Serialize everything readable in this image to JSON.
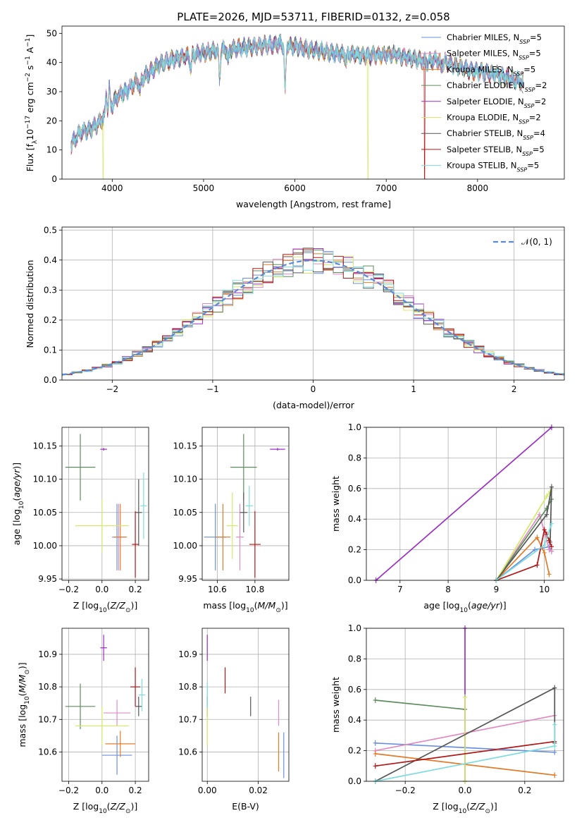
{
  "title": "PLATE=2026, MJD=53711, FIBERID=0132, z=0.058",
  "colors": {
    "chabrier_miles": "#6a8fdc",
    "salpeter_miles": "#e08cc0",
    "kroupa_miles": "#e07b2a",
    "chabrier_elodie": "#5e8c5e",
    "salpeter_elodie": "#9b30c0",
    "kroupa_elodie": "#d4ea6a",
    "chabrier_stelib": "#555555",
    "salpeter_stelib": "#b01818",
    "kroupa_stelib": "#80dcdc",
    "normal": "#5b8ad6"
  },
  "legend": {
    "chabrier_miles": "Chabrier MILES, N",
    "salpeter_miles": "Salpeter MILES, N",
    "kroupa_miles": "Kroupa MILES, N",
    "chabrier_elodie": "Chabrier ELODIE, N",
    "salpeter_elodie": "Salpeter ELODIE, N",
    "kroupa_elodie": "Kroupa ELODIE, N",
    "chabrier_stelib": "Chabrier STELIB, N",
    "salpeter_stelib": "Salpeter STELIB, N",
    "kroupa_stelib": "Kroupa STELIB, N",
    "sub": "SSP",
    "n_chabrier_miles": "=5",
    "n_salpeter_miles": "=5",
    "n_kroupa_miles": "=5",
    "n_chabrier_elodie": "=2",
    "n_salpeter_elodie": "=2",
    "n_kroupa_elodie": "=2",
    "n_chabrier_stelib": "=4",
    "n_salpeter_stelib": "=5",
    "n_kroupa_stelib": "=5",
    "normal": "𝒩(0, 1)"
  },
  "chart_data": [
    {
      "type": "line",
      "panel": "spectrum",
      "xlabel": "wavelength [Angstrom, rest frame]",
      "ylabel": "Flux [f",
      "ylabel_sub": "λ",
      "ylabel_tail": "10",
      "ylabel_exp": "−17",
      "ylabel_unit": " erg cm",
      "ylabel_exp2": "−2",
      "ylabel_unit2": " s",
      "ylabel_exp3": "−1",
      "ylabel_unit3": " A",
      "ylabel_exp4": "−1",
      "ylabel_close": "]",
      "xlim": [
        3450,
        8950
      ],
      "ylim": [
        0,
        52.5
      ],
      "xticks": [
        "4000",
        "5000",
        "6000",
        "7000",
        "8000"
      ],
      "yticks": [
        "0",
        "10",
        "20",
        "30",
        "40",
        "50"
      ],
      "continuum": [
        [
          3550,
          12
        ],
        [
          3650,
          16
        ],
        [
          3750,
          17
        ],
        [
          3850,
          19
        ],
        [
          3950,
          23
        ],
        [
          4050,
          28
        ],
        [
          4150,
          30
        ],
        [
          4250,
          33
        ],
        [
          4350,
          35
        ],
        [
          4500,
          39
        ],
        [
          4650,
          41
        ],
        [
          4800,
          42
        ],
        [
          4950,
          43
        ],
        [
          5100,
          44
        ],
        [
          5250,
          44.5
        ],
        [
          5400,
          45
        ],
        [
          5550,
          45.5
        ],
        [
          5700,
          46
        ],
        [
          5850,
          46.5
        ],
        [
          6000,
          45.5
        ],
        [
          6150,
          44.5
        ],
        [
          6300,
          44
        ],
        [
          6450,
          43
        ],
        [
          6600,
          43
        ],
        [
          6750,
          42.5
        ],
        [
          6900,
          42.5
        ],
        [
          7050,
          43
        ],
        [
          7200,
          42
        ],
        [
          7350,
          41
        ],
        [
          7450,
          40
        ],
        [
          7550,
          41
        ],
        [
          7650,
          40
        ],
        [
          7800,
          38.5
        ],
        [
          7950,
          37
        ],
        [
          8100,
          36.5
        ],
        [
          8200,
          36
        ],
        [
          8300,
          35
        ],
        [
          8400,
          34
        ],
        [
          8500,
          33.5
        ]
      ],
      "absorption_lines": [
        [
          3934,
          29
        ],
        [
          3968,
          31
        ],
        [
          4102,
          30
        ],
        [
          4305,
          30
        ],
        [
          4861,
          38
        ],
        [
          5175,
          34
        ],
        [
          5270,
          40
        ],
        [
          5893,
          30
        ],
        [
          6563,
          40
        ],
        [
          7600,
          38
        ],
        [
          8500,
          33
        ]
      ],
      "dropouts": [
        [
          3900,
          "kroupa_elodie"
        ],
        [
          6800,
          "kroupa_elodie"
        ],
        [
          7420,
          "salpeter_stelib"
        ]
      ]
    },
    {
      "type": "line",
      "panel": "residual_histogram",
      "xlabel": "(data-model)/error",
      "ylabel": "Normed distribution",
      "xlim": [
        -2.5,
        2.5
      ],
      "ylim": [
        0,
        0.51
      ],
      "xticks": [
        "−2",
        "−1",
        "0",
        "1",
        "2"
      ],
      "yticks": [
        "0.0",
        "0.1",
        "0.2",
        "0.3",
        "0.4",
        "0.5"
      ],
      "bin_width": 0.1,
      "reference": "standard normal"
    },
    {
      "type": "scatter",
      "panel": "age_vs_Z",
      "xlabel": "Z [log",
      "ylabel": "age  [log",
      "xlim": [
        -0.24,
        0.28
      ],
      "ylim": [
        9.948,
        10.178
      ],
      "xticks": [
        "−0.2",
        "0.0",
        "0.2"
      ],
      "yticks": [
        "9.95",
        "10.00",
        "10.05",
        "10.10",
        "10.15"
      ],
      "points": [
        {
          "model": "chabrier_miles",
          "x": 0.09,
          "xerr": 0.03,
          "y": 10.013,
          "yerr": 0.05
        },
        {
          "model": "salpeter_miles",
          "x": 0.1,
          "xerr": 0.04,
          "y": 10.013,
          "yerr": 0.05
        },
        {
          "model": "kroupa_miles",
          "x": 0.11,
          "xerr": 0.04,
          "y": 10.013,
          "yerr": 0.05
        },
        {
          "model": "chabrier_elodie",
          "x": -0.13,
          "xerr": 0.09,
          "y": 10.118,
          "yerr": 0.05
        },
        {
          "model": "salpeter_elodie",
          "x": 0.01,
          "xerr": 0.02,
          "y": 10.145,
          "yerr": 0.002
        },
        {
          "model": "kroupa_elodie",
          "x": 0.0,
          "xerr": 0.16,
          "y": 10.03,
          "yerr": 0.04
        },
        {
          "model": "chabrier_stelib",
          "x": 0.22,
          "xerr": 0.02,
          "y": 10.05,
          "yerr": 0.05
        },
        {
          "model": "salpeter_stelib",
          "x": 0.2,
          "xerr": 0.02,
          "y": 10.002,
          "yerr": 0.05
        },
        {
          "model": "kroupa_stelib",
          "x": 0.25,
          "xerr": 0.02,
          "y": 10.06,
          "yerr": 0.05
        }
      ]
    },
    {
      "type": "scatter",
      "panel": "age_vs_mass",
      "xlabel": "mass [log",
      "xlim": [
        10.52,
        10.98
      ],
      "ylim": [
        9.948,
        10.178
      ],
      "xticks": [
        "10.6",
        "10.8"
      ],
      "yticks": [
        "9.95",
        "10.00",
        "10.05",
        "10.10",
        "10.15"
      ],
      "points": [
        {
          "model": "chabrier_miles",
          "x": 10.59,
          "xerr": 0.06,
          "y": 10.013,
          "yerr": 0.05
        },
        {
          "model": "salpeter_miles",
          "x": 10.72,
          "xerr": 0.02,
          "y": 10.013,
          "yerr": 0.05
        },
        {
          "model": "kroupa_miles",
          "x": 10.63,
          "xerr": 0.04,
          "y": 10.013,
          "yerr": 0.05
        },
        {
          "model": "chabrier_elodie",
          "x": 10.74,
          "xerr": 0.07,
          "y": 10.118,
          "yerr": 0.05
        },
        {
          "model": "salpeter_elodie",
          "x": 10.92,
          "xerr": 0.04,
          "y": 10.145,
          "yerr": 0.002
        },
        {
          "model": "kroupa_elodie",
          "x": 10.68,
          "xerr": 0.03,
          "y": 10.03,
          "yerr": 0.05
        },
        {
          "model": "chabrier_stelib",
          "x": 10.74,
          "xerr": 0.02,
          "y": 10.05,
          "yerr": 0.03
        },
        {
          "model": "salpeter_stelib",
          "x": 10.8,
          "xerr": 0.03,
          "y": 10.002,
          "yerr": 0.05
        },
        {
          "model": "kroupa_stelib",
          "x": 10.77,
          "xerr": 0.02,
          "y": 10.06,
          "yerr": 0.03
        }
      ]
    },
    {
      "type": "line",
      "panel": "mass_weight_vs_age",
      "xlabel": "age  [log",
      "ylabel": "mass weight",
      "xlim": [
        6.3,
        10.4
      ],
      "ylim": [
        0,
        1.0
      ],
      "xticks": [
        "7",
        "8",
        "9",
        "10"
      ],
      "yticks": [
        "0.0",
        "0.2",
        "0.4",
        "0.6",
        "0.8",
        "1.0"
      ],
      "series": [
        {
          "model": "chabrier_miles",
          "points": [
            [
              9.0,
              0.0
            ],
            [
              9.8,
              0.2
            ],
            [
              10.1,
              0.22
            ],
            [
              10.15,
              0.19
            ]
          ]
        },
        {
          "model": "salpeter_miles",
          "points": [
            [
              9.0,
              0.0
            ],
            [
              9.9,
              0.43
            ],
            [
              10.1,
              0.2
            ],
            [
              10.15,
              0.19
            ]
          ]
        },
        {
          "model": "kroupa_miles",
          "points": [
            [
              9.0,
              0.0
            ],
            [
              9.85,
              0.28
            ],
            [
              10.0,
              0.18
            ],
            [
              10.1,
              0.04
            ]
          ]
        },
        {
          "model": "chabrier_elodie",
          "points": [
            [
              9.0,
              0.0
            ],
            [
              10.05,
              0.47
            ],
            [
              10.15,
              0.53
            ]
          ]
        },
        {
          "model": "salpeter_elodie",
          "points": [
            [
              6.5,
              0.0
            ],
            [
              10.15,
              1.0
            ]
          ]
        },
        {
          "model": "kroupa_elodie",
          "points": [
            [
              9.0,
              0.0
            ],
            [
              10.05,
              0.55
            ],
            [
              10.12,
              0.58
            ]
          ]
        },
        {
          "model": "chabrier_stelib",
          "points": [
            [
              9.0,
              0.0
            ],
            [
              10.05,
              0.43
            ],
            [
              10.15,
              0.61
            ],
            [
              10.12,
              0.25
            ]
          ]
        },
        {
          "model": "salpeter_stelib",
          "points": [
            [
              9.0,
              0.0
            ],
            [
              9.85,
              0.1
            ],
            [
              10.0,
              0.33
            ],
            [
              10.05,
              0.3
            ],
            [
              10.1,
              0.26
            ],
            [
              10.15,
              0.22
            ]
          ]
        },
        {
          "model": "kroupa_stelib",
          "points": [
            [
              9.0,
              0.0
            ],
            [
              10.0,
              0.23
            ],
            [
              10.15,
              0.37
            ]
          ]
        }
      ]
    },
    {
      "type": "scatter",
      "panel": "mass_vs_Z",
      "xlabel": "Z [log",
      "ylabel": "mass [log",
      "xlim": [
        -0.24,
        0.28
      ],
      "ylim": [
        10.51,
        10.98
      ],
      "xticks": [
        "−0.2",
        "0.0",
        "0.2"
      ],
      "yticks": [
        "10.6",
        "10.7",
        "10.8",
        "10.9"
      ],
      "points": [
        {
          "model": "chabrier_miles",
          "x": 0.09,
          "xerr": 0.09,
          "y": 10.59,
          "yerr": 0.06
        },
        {
          "model": "salpeter_miles",
          "x": 0.09,
          "xerr": 0.08,
          "y": 10.72,
          "yerr": 0.04
        },
        {
          "model": "kroupa_miles",
          "x": 0.11,
          "xerr": 0.09,
          "y": 10.625,
          "yerr": 0.04
        },
        {
          "model": "chabrier_elodie",
          "x": -0.13,
          "xerr": 0.09,
          "y": 10.74,
          "yerr": 0.07
        },
        {
          "model": "salpeter_elodie",
          "x": 0.01,
          "xerr": 0.02,
          "y": 10.92,
          "yerr": 0.04
        },
        {
          "model": "kroupa_elodie",
          "x": 0.0,
          "xerr": 0.16,
          "y": 10.68,
          "yerr": 0.06
        },
        {
          "model": "chabrier_stelib",
          "x": 0.22,
          "xerr": 0.02,
          "y": 10.74,
          "yerr": 0.03
        },
        {
          "model": "salpeter_stelib",
          "x": 0.2,
          "xerr": 0.03,
          "y": 10.8,
          "yerr": 0.06
        },
        {
          "model": "kroupa_stelib",
          "x": 0.24,
          "xerr": 0.02,
          "y": 10.775,
          "yerr": 0.05
        }
      ]
    },
    {
      "type": "scatter",
      "panel": "mass_vs_ebv",
      "xlabel": "E(B-V)",
      "xlim": [
        -0.002,
        0.032
      ],
      "ylim": [
        10.51,
        10.98
      ],
      "xticks": [
        "0.00",
        "0.02"
      ],
      "yticks": [
        "10.6",
        "10.7",
        "10.8",
        "10.9"
      ],
      "points": [
        {
          "model": "chabrier_miles",
          "x": 0.03,
          "y": 10.59,
          "yerr": 0.07
        },
        {
          "model": "salpeter_miles",
          "x": 0.028,
          "y": 10.72,
          "yerr": 0.04
        },
        {
          "model": "kroupa_miles",
          "x": 0.028,
          "y": 10.6,
          "yerr": 0.06
        },
        {
          "model": "chabrier_elodie",
          "x": 0.0,
          "y": 10.74,
          "yerr": 0.03
        },
        {
          "model": "salpeter_elodie",
          "x": 0.0,
          "y": 10.92,
          "yerr": 0.04
        },
        {
          "model": "kroupa_elodie",
          "x": 0.0,
          "y": 10.68,
          "yerr": 0.06
        },
        {
          "model": "chabrier_stelib",
          "x": 0.017,
          "y": 10.74,
          "yerr": 0.03
        },
        {
          "model": "salpeter_stelib",
          "x": 0.007,
          "y": 10.82,
          "yerr": 0.04
        },
        {
          "model": "kroupa_stelib",
          "x": 0.0,
          "y": 10.775,
          "yerr": 0.04
        }
      ]
    },
    {
      "type": "line",
      "panel": "mass_weight_vs_Z",
      "xlabel": "Z [log",
      "ylabel": "mass weight",
      "xlim": [
        -0.33,
        0.33
      ],
      "ylim": [
        0,
        1.0
      ],
      "xticks": [
        "−0.2",
        "0.0",
        "0.2"
      ],
      "yticks": [
        "0.0",
        "0.2",
        "0.4",
        "0.6",
        "0.8",
        "1.0"
      ],
      "series": [
        {
          "model": "chabrier_miles",
          "points": [
            [
              -0.3,
              0.25
            ],
            [
              0.3,
              0.19
            ]
          ]
        },
        {
          "model": "salpeter_miles",
          "points": [
            [
              -0.3,
              0.2
            ],
            [
              0.3,
              0.43
            ]
          ]
        },
        {
          "model": "kroupa_miles",
          "points": [
            [
              -0.3,
              0.18
            ],
            [
              0.3,
              0.04
            ]
          ]
        },
        {
          "model": "chabrier_elodie",
          "points": [
            [
              -0.3,
              0.53
            ],
            [
              0.0,
              0.47
            ]
          ]
        },
        {
          "model": "salpeter_elodie",
          "points": [
            [
              0.0,
              0.0
            ],
            [
              0.0,
              1.0
            ]
          ]
        },
        {
          "model": "kroupa_elodie",
          "points": [
            [
              0.0,
              0.0
            ],
            [
              0.0,
              0.55
            ]
          ]
        },
        {
          "model": "chabrier_stelib",
          "points": [
            [
              -0.3,
              0.0
            ],
            [
              0.3,
              0.61
            ],
            [
              0.3,
              0.25
            ]
          ]
        },
        {
          "model": "salpeter_stelib",
          "points": [
            [
              -0.3,
              0.1
            ],
            [
              0.3,
              0.26
            ]
          ]
        },
        {
          "model": "kroupa_stelib",
          "points": [
            [
              -0.3,
              0.0
            ],
            [
              0.3,
              0.23
            ],
            [
              0.3,
              0.37
            ]
          ]
        }
      ]
    }
  ]
}
